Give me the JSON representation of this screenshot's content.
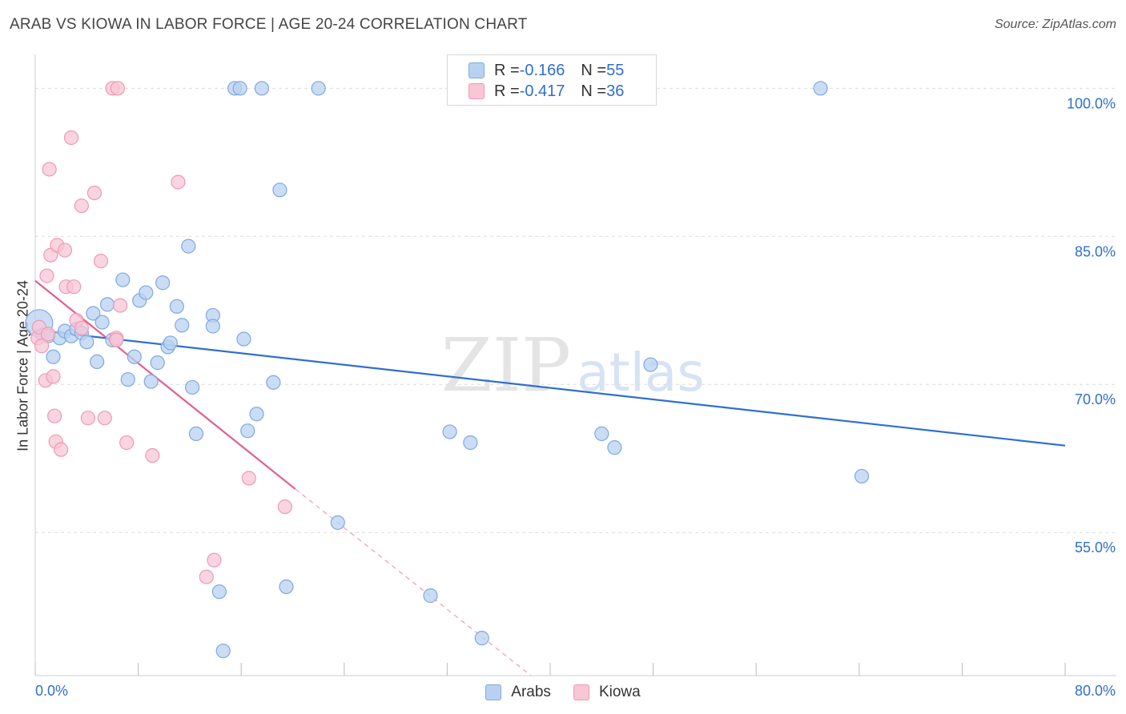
{
  "title": "ARAB VS KIOWA IN LABOR FORCE | AGE 20-24 CORRELATION CHART",
  "source": "Source: ZipAtlas.com",
  "watermark": {
    "zip": "ZIP",
    "atlas": "atlas"
  },
  "legend_top": [
    {
      "r_label": "R = ",
      "r_value": "-0.166",
      "n_label": "N = ",
      "n_value": "55"
    },
    {
      "r_label": "R = ",
      "r_value": "-0.417",
      "n_label": "N = ",
      "n_value": "36"
    }
  ],
  "legend_bottom": [
    "Arabs",
    "Kiowa"
  ],
  "colors": {
    "arabs_fill": "#b8d1f2",
    "arabs_stroke": "#7fa9e0",
    "arabs_line": "#2f6fd0",
    "kiowa_fill": "#f8c6d5",
    "kiowa_stroke": "#ee9ab4",
    "kiowa_line": "#e0608a",
    "tick_label": "#2f6fd0"
  },
  "chart_data": {
    "type": "scatter",
    "title": "ARAB VS KIOWA IN LABOR FORCE | AGE 20-24 CORRELATION CHART",
    "xlabel": "",
    "ylabel": "In Labor Force | Age 20-24",
    "xlim": [
      0,
      80
    ],
    "ylim": [
      40.5,
      102.5
    ],
    "x_tick_labels": [
      "0.0%",
      "80.0%"
    ],
    "y_ticks": [
      {
        "value": 100,
        "label": "100.0%"
      },
      {
        "value": 85,
        "label": "85.0%"
      },
      {
        "value": 70,
        "label": "70.0%"
      },
      {
        "value": 55,
        "label": "55.0%"
      }
    ],
    "series": [
      {
        "name": "Arabs",
        "r": -0.166,
        "n": 55,
        "trend": {
          "x0": 0,
          "y0": 75.5,
          "x1": 80,
          "y1": 63.8
        },
        "points": [
          [
            0.3,
            76.2,
            "large"
          ],
          [
            0.6,
            75.0,
            "normal"
          ],
          [
            1.0,
            74.9,
            "normal"
          ],
          [
            1.4,
            72.8,
            "normal"
          ],
          [
            1.9,
            74.7,
            "normal"
          ],
          [
            2.3,
            75.4,
            "normal"
          ],
          [
            2.8,
            74.9,
            "normal"
          ],
          [
            3.2,
            75.6,
            "normal"
          ],
          [
            3.6,
            75.2,
            "normal"
          ],
          [
            4.0,
            74.3,
            "normal"
          ],
          [
            4.5,
            77.2,
            "normal"
          ],
          [
            4.8,
            72.3,
            "normal"
          ],
          [
            5.2,
            76.3,
            "normal"
          ],
          [
            5.6,
            78.1,
            "normal"
          ],
          [
            6.0,
            74.5,
            "normal"
          ],
          [
            6.3,
            74.5,
            "normal"
          ],
          [
            6.8,
            80.6,
            "normal"
          ],
          [
            7.2,
            70.5,
            "normal"
          ],
          [
            7.7,
            72.8,
            "normal"
          ],
          [
            8.1,
            78.5,
            "normal"
          ],
          [
            8.6,
            79.3,
            "normal"
          ],
          [
            9.0,
            70.3,
            "normal"
          ],
          [
            9.5,
            72.2,
            "normal"
          ],
          [
            9.9,
            80.3,
            "normal"
          ],
          [
            10.3,
            73.8,
            "normal"
          ],
          [
            10.5,
            74.2,
            "normal"
          ],
          [
            11.0,
            77.9,
            "normal"
          ],
          [
            11.4,
            76.0,
            "normal"
          ],
          [
            11.9,
            84.0,
            "normal"
          ],
          [
            12.2,
            69.7,
            "normal"
          ],
          [
            12.5,
            65.0,
            "normal"
          ],
          [
            13.8,
            77.0,
            "normal"
          ],
          [
            13.8,
            75.9,
            "normal"
          ],
          [
            14.3,
            49.0,
            "normal"
          ],
          [
            14.6,
            43.0,
            "normal"
          ],
          [
            15.5,
            100.0,
            "normal"
          ],
          [
            15.9,
            100.0,
            "normal"
          ],
          [
            16.2,
            74.6,
            "normal"
          ],
          [
            16.5,
            65.3,
            "normal"
          ],
          [
            17.2,
            67.0,
            "normal"
          ],
          [
            17.6,
            100.0,
            "normal"
          ],
          [
            18.5,
            70.2,
            "normal"
          ],
          [
            19.0,
            89.7,
            "normal"
          ],
          [
            19.5,
            49.5,
            "normal"
          ],
          [
            22.0,
            100.0,
            "normal"
          ],
          [
            23.5,
            56.0,
            "normal"
          ],
          [
            30.7,
            48.6,
            "normal"
          ],
          [
            32.2,
            65.2,
            "normal"
          ],
          [
            33.8,
            64.1,
            "normal"
          ],
          [
            34.7,
            44.3,
            "normal"
          ],
          [
            44.0,
            65.0,
            "normal"
          ],
          [
            45.0,
            63.6,
            "normal"
          ],
          [
            47.8,
            72.0,
            "normal"
          ],
          [
            61.0,
            100.0,
            "normal"
          ],
          [
            64.2,
            60.7,
            "normal"
          ]
        ]
      },
      {
        "name": "Kiowa",
        "r": -0.417,
        "n": 36,
        "trend": {
          "x0": 0,
          "y0": 80.5,
          "x1": 20.2,
          "y1": 59.4,
          "dash_to_x": 38.5,
          "dash_to_y": 40.5
        },
        "points": [
          [
            0.2,
            74.7,
            "normal"
          ],
          [
            0.3,
            75.8,
            "normal"
          ],
          [
            0.5,
            73.9,
            "normal"
          ],
          [
            0.8,
            70.4,
            "normal"
          ],
          [
            0.9,
            81.0,
            "normal"
          ],
          [
            1.0,
            75.1,
            "normal"
          ],
          [
            1.1,
            91.8,
            "normal"
          ],
          [
            1.2,
            83.1,
            "normal"
          ],
          [
            1.4,
            70.8,
            "normal"
          ],
          [
            1.5,
            66.8,
            "normal"
          ],
          [
            1.6,
            64.2,
            "normal"
          ],
          [
            1.7,
            84.1,
            "normal"
          ],
          [
            2.0,
            63.4,
            "normal"
          ],
          [
            2.3,
            83.6,
            "normal"
          ],
          [
            2.4,
            79.9,
            "normal"
          ],
          [
            2.8,
            95.0,
            "normal"
          ],
          [
            3.0,
            79.9,
            "normal"
          ],
          [
            3.2,
            76.5,
            "normal"
          ],
          [
            3.6,
            75.7,
            "normal"
          ],
          [
            3.6,
            88.1,
            "normal"
          ],
          [
            4.1,
            66.6,
            "normal"
          ],
          [
            4.6,
            89.4,
            "normal"
          ],
          [
            5.1,
            82.5,
            "normal"
          ],
          [
            5.4,
            66.6,
            "normal"
          ],
          [
            6.0,
            100.0,
            "normal"
          ],
          [
            6.3,
            74.7,
            "normal"
          ],
          [
            6.3,
            74.5,
            "normal"
          ],
          [
            6.4,
            100.0,
            "normal"
          ],
          [
            6.6,
            78.0,
            "normal"
          ],
          [
            7.1,
            64.1,
            "normal"
          ],
          [
            9.1,
            62.8,
            "normal"
          ],
          [
            11.1,
            90.5,
            "normal"
          ],
          [
            13.3,
            50.5,
            "normal"
          ],
          [
            13.9,
            52.2,
            "normal"
          ],
          [
            16.6,
            60.5,
            "normal"
          ],
          [
            19.4,
            57.6,
            "normal"
          ]
        ]
      }
    ]
  }
}
